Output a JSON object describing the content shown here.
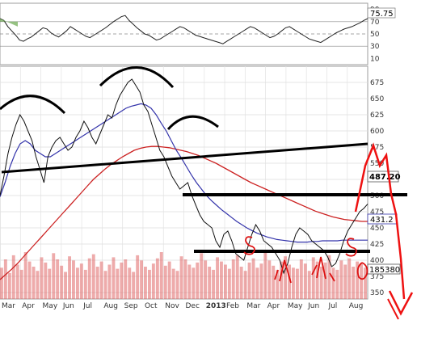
{
  "chart_data": [
    {
      "type": "line",
      "panel": "rsi",
      "axis_ticks": [
        "90",
        "70",
        "50",
        "30",
        "10"
      ],
      "y_ticks": [
        90,
        70,
        50,
        30,
        10
      ],
      "ylim": [
        0,
        100
      ],
      "guide_levels": [
        70,
        50,
        30
      ],
      "current_label": "75.75",
      "current_value": 75.75,
      "series": [
        {
          "values": [
            75,
            72,
            62,
            55,
            48,
            40,
            38,
            42,
            45,
            50,
            55,
            60,
            58,
            52,
            48,
            45,
            50,
            55,
            62,
            58,
            54,
            50,
            46,
            44,
            48,
            52,
            56,
            60,
            65,
            70,
            74,
            78,
            80,
            72,
            66,
            60,
            55,
            50,
            48,
            44,
            40,
            42,
            46,
            50,
            54,
            58,
            62,
            60,
            56,
            52,
            48,
            46,
            44,
            42,
            40,
            38,
            36,
            34,
            38,
            42,
            46,
            50,
            54,
            58,
            62,
            60,
            56,
            52,
            48,
            44,
            46,
            50,
            55,
            60,
            62,
            58,
            54,
            50,
            46,
            42,
            40,
            38,
            36,
            40,
            44,
            48,
            52,
            55,
            58,
            60,
            62,
            65,
            68,
            72,
            75
          ]
        }
      ]
    },
    {
      "type": "line",
      "panel": "price",
      "x_tick_labels": [
        "Mar",
        "Apr",
        "May",
        "Jun",
        "Jul",
        "Aug",
        "Sep",
        "Oct",
        "Nov",
        "Dec",
        "2013",
        "Feb",
        "Mar",
        "Apr",
        "May",
        "Jun",
        "Jul",
        "Aug"
      ],
      "y_tick_labels": [
        "675",
        "650",
        "625",
        "600",
        "575",
        "550",
        "525",
        "500",
        "475",
        "450",
        "425",
        "400",
        "375",
        "350"
      ],
      "y_ticks": [
        675,
        650,
        625,
        600,
        575,
        550,
        525,
        500,
        475,
        450,
        425,
        400,
        375,
        350
      ],
      "ylim": [
        340,
        700
      ],
      "grid": true,
      "price_label": "487.20",
      "price_value": 487.2,
      "ma_label": "431.2",
      "ma_value": 431.2,
      "volume_label": "185380",
      "series": [
        {
          "values": [
            500,
            530,
            565,
            590,
            610,
            625,
            615,
            600,
            585,
            560,
            540,
            520,
            560,
            575,
            585,
            590,
            580,
            570,
            575,
            590,
            600,
            615,
            605,
            590,
            580,
            595,
            610,
            625,
            620,
            640,
            655,
            665,
            675,
            680,
            670,
            660,
            640,
            630,
            610,
            590,
            570,
            560,
            545,
            530,
            520,
            510,
            515,
            520,
            500,
            485,
            470,
            460,
            455,
            450,
            430,
            420,
            440,
            445,
            430,
            410,
            405,
            400,
            420,
            440,
            455,
            445,
            430,
            425,
            420,
            410,
            400,
            380,
            395,
            420,
            440,
            450,
            445,
            440,
            430,
            425,
            420,
            415,
            405,
            390,
            395,
            410,
            430,
            445,
            455,
            465,
            475,
            480,
            487
          ]
        },
        {
          "values": [
            498,
            520,
            545,
            565,
            580,
            585,
            580,
            570,
            565,
            560,
            560,
            565,
            570,
            575,
            580,
            585,
            590,
            595,
            600,
            605,
            610,
            615,
            620,
            625,
            630,
            635,
            638,
            640,
            642,
            640,
            635,
            625,
            612,
            600,
            585,
            570,
            558,
            545,
            532,
            520,
            510,
            500,
            492,
            485,
            478,
            472,
            466,
            460,
            455,
            450,
            446,
            442,
            439,
            436,
            434,
            432,
            431,
            430,
            429,
            428,
            428,
            428,
            429,
            429,
            430,
            430,
            430,
            430,
            431,
            431,
            431,
            431,
            431,
            431
          ]
        },
        {
          "values": [
            370,
            378,
            386,
            395,
            405,
            415,
            425,
            435,
            445,
            455,
            465,
            475,
            485,
            495,
            505,
            515,
            525,
            533,
            541,
            548,
            554,
            560,
            565,
            570,
            573,
            575,
            576,
            576,
            575,
            574,
            572,
            570,
            568,
            565,
            562,
            558,
            554,
            550,
            545,
            540,
            535,
            530,
            525,
            520,
            516,
            512,
            508,
            504,
            500,
            496,
            492,
            488,
            484,
            480,
            476,
            473,
            470,
            467,
            465,
            463,
            462,
            461,
            460,
            460
          ]
        }
      ],
      "volume": [
        30,
        38,
        25,
        42,
        33,
        28,
        45,
        36,
        31,
        27,
        40,
        35,
        29,
        44,
        38,
        32,
        26,
        41,
        37,
        30,
        34,
        28,
        39,
        43,
        31,
        36,
        27,
        33,
        40,
        29,
        35,
        38,
        30,
        26,
        42,
        37,
        31,
        28,
        34,
        39,
        45,
        32,
        36,
        29,
        27,
        41,
        38,
        33,
        30,
        35,
        44,
        37,
        31,
        28,
        40,
        36,
        33,
        29,
        38,
        42,
        31,
        27,
        35,
        39,
        30,
        34,
        45,
        37,
        32,
        28,
        36,
        41,
        33,
        30,
        29,
        38,
        34,
        27,
        40,
        36,
        31,
        35,
        42,
        30,
        28,
        37,
        33,
        39,
        31,
        36,
        34,
        30
      ]
    }
  ]
}
